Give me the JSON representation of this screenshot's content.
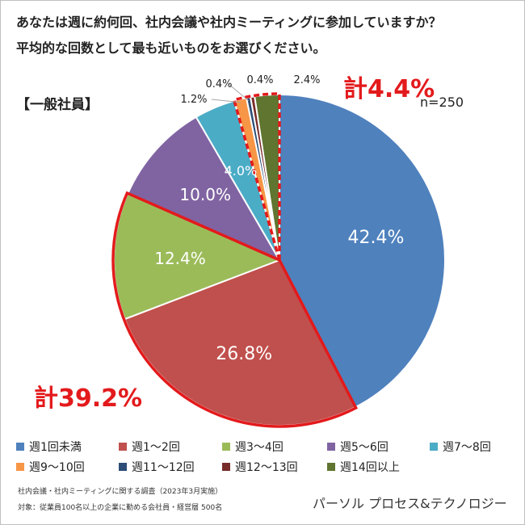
{
  "title_line1": "あなたは週に約何回、社内会議や社内ミーティングに参加していますか？",
  "title_line2": "平均的な回数として最も近いものをお選びください。",
  "group_label": "【一般社員】",
  "sample_size": "n=250",
  "total_top": "計4.4%",
  "total_bottom": "計39.2%",
  "footnote1": "社内会議・社内ミーティングに関する調査（2023年3月実施）",
  "footnote2": "対象：従業員100名以上の企業に勤める会社員・経営層 500名",
  "company": "パーソル プロセス&テクノロジー",
  "highlight_color": "#e31a1c",
  "chart_data": {
    "type": "pie",
    "unit": "%",
    "categories": [
      "週1回未満",
      "週1～2回",
      "週3～4回",
      "週5～6回",
      "週7～8回",
      "週9～10回",
      "週11～12回",
      "週12～13回",
      "週14回以上"
    ],
    "values": [
      42.4,
      26.8,
      12.4,
      10.0,
      4.0,
      1.2,
      0.4,
      0.4,
      2.4
    ],
    "labels": [
      "42.4%",
      "26.8%",
      "12.4%",
      "10.0%",
      "4.0%",
      "1.2%",
      "0.4%",
      "0.4%",
      "2.4%"
    ],
    "colors": [
      "#4f81bd",
      "#c0504d",
      "#9bbb59",
      "#8064a2",
      "#4bacc6",
      "#f79646",
      "#2c4d75",
      "#772c2a",
      "#5f7530"
    ],
    "label_color": [
      "#ffffff",
      "#ffffff",
      "#ffffff",
      "#ffffff",
      "#ffffff",
      "#222222",
      "#222222",
      "#222222",
      "#222222"
    ],
    "start_angle_deg": 0,
    "direction": "clockwise",
    "highlighted_groups": [
      {
        "label": "計39.2%",
        "categories": [
          "週1～2回",
          "週3～4回"
        ]
      },
      {
        "label": "計4.4%",
        "categories": [
          "週9～10回",
          "週11～12回",
          "週12～13回",
          "週14回以上"
        ]
      }
    ],
    "legend_position": "bottom"
  }
}
